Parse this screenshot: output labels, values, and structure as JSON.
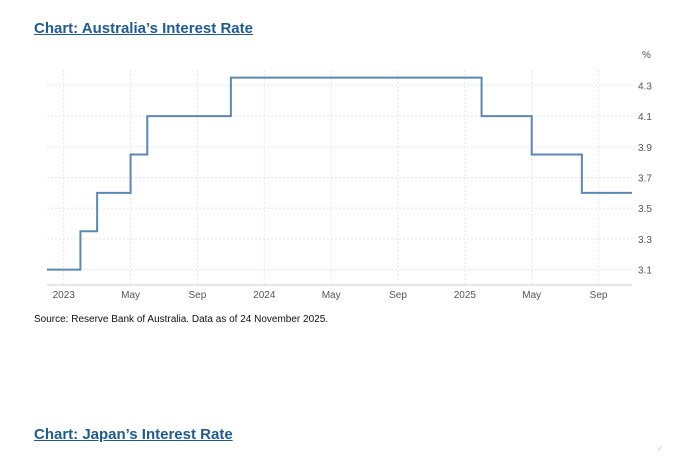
{
  "headings": {
    "chart1": "Chart: Australia’s Interest Rate",
    "chart2": "Chart: Japan’s Interest Rate"
  },
  "source_note": "Source: Reserve Bank of Australia. Data as of 24 November 2025.",
  "corner_mark": "⁄⁄",
  "colors": {
    "heading": "#1f5b93",
    "line": "#5b87b4",
    "grid": "#e6e6e6"
  },
  "chart_data": {
    "type": "line",
    "step": true,
    "unit_label": "%",
    "y_ticks": [
      3.1,
      3.3,
      3.5,
      3.7,
      3.9,
      4.1,
      4.3
    ],
    "ylim": [
      3.0,
      4.4
    ],
    "x_tick_labels": [
      "2023",
      "May",
      "Sep",
      "2024",
      "May",
      "Sep",
      "2025",
      "May",
      "Sep"
    ],
    "x_tick_dates": [
      "2023-01",
      "2023-05",
      "2023-09",
      "2024-01",
      "2024-05",
      "2024-09",
      "2025-01",
      "2025-05",
      "2025-09"
    ],
    "xlim": [
      "2022-12",
      "2025-11"
    ],
    "grid": true,
    "series": [
      {
        "points": [
          {
            "x": "2022-12",
            "y": 3.1
          },
          {
            "x": "2023-02",
            "y": 3.35
          },
          {
            "x": "2023-03",
            "y": 3.6
          },
          {
            "x": "2023-05",
            "y": 3.85
          },
          {
            "x": "2023-06",
            "y": 4.1
          },
          {
            "x": "2023-11",
            "y": 4.35
          },
          {
            "x": "2025-02",
            "y": 4.1
          },
          {
            "x": "2025-05",
            "y": 3.85
          },
          {
            "x": "2025-08",
            "y": 3.6
          },
          {
            "x": "2025-11",
            "y": 3.6
          }
        ]
      }
    ]
  }
}
